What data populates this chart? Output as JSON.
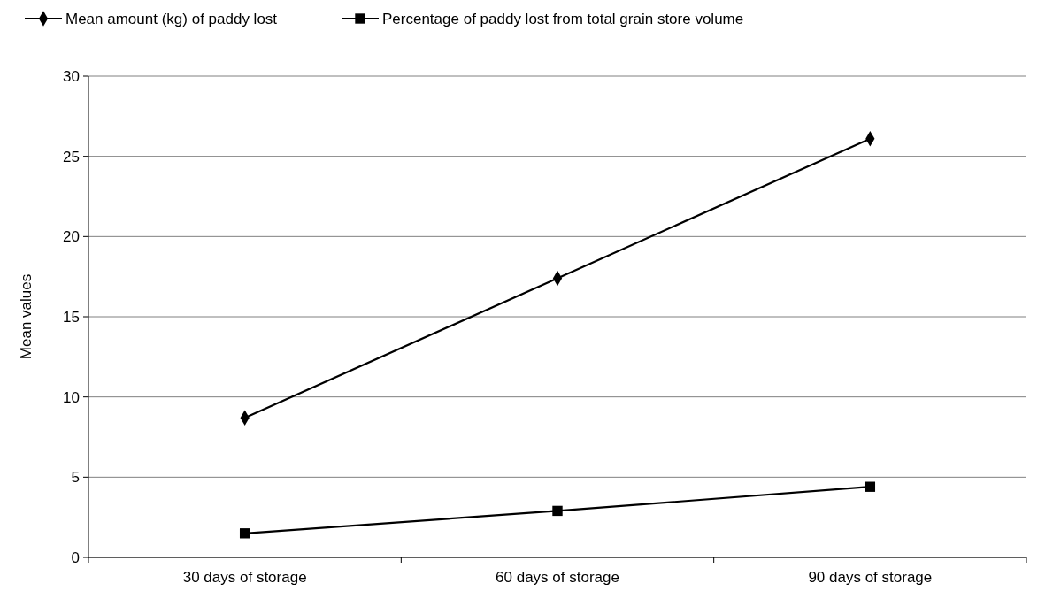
{
  "chart_data": {
    "type": "line",
    "ylabel": "Mean values",
    "categories": [
      "30 days of storage",
      "60 days of storage",
      "90 days of storage"
    ],
    "series": [
      {
        "name": "Mean amount (kg) of paddy lost",
        "color": "#000000",
        "marker": "diamond",
        "values": [
          8.7,
          17.4,
          26.1
        ]
      },
      {
        "name": "Percentage of paddy lost from total grain store volume",
        "color": "#000000",
        "marker": "square",
        "values": [
          1.5,
          2.9,
          4.4
        ]
      }
    ],
    "ylim": [
      0,
      30
    ],
    "yticks": [
      0,
      5,
      10,
      15,
      20,
      25,
      30
    ],
    "grid": "y",
    "legend": "top",
    "line_style": "solid"
  }
}
